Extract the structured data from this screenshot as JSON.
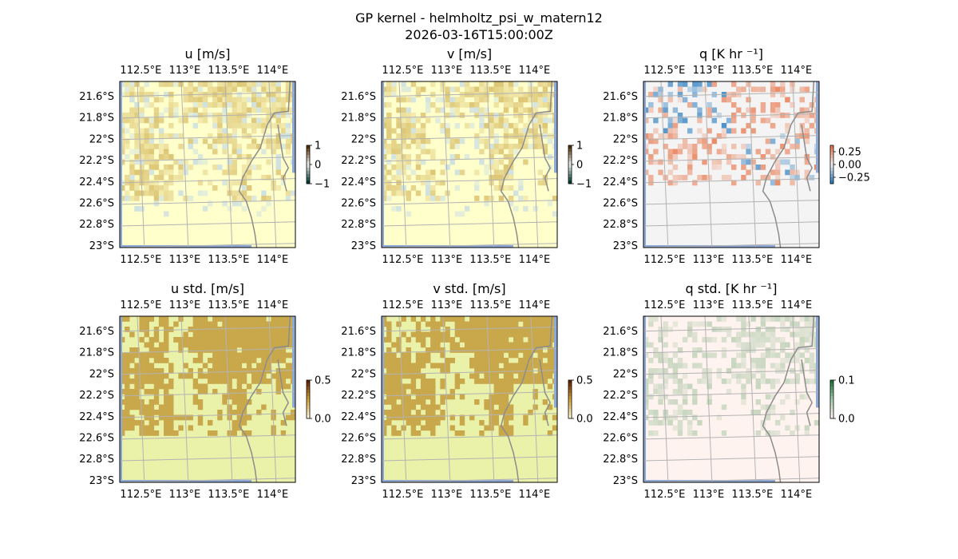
{
  "figure": {
    "title": "GP kernel - helmholtz_psi_w_matern12",
    "subtitle": "2026-03-16T15:00:00Z"
  },
  "colors": {
    "land_fill": "#ffffcc",
    "ocean_strip": "#8fa9d6",
    "coast_line": "#8c8c8c",
    "grid_line": "#b3b3b3",
    "u_high": "#d9c06b",
    "u_low": "#c9dde3",
    "q_pos": "#e8784d",
    "q_neg": "#2f7fc1",
    "q_bg": "#f4f4f4",
    "std_high": "#c9a84c",
    "std_low": "#e9f2a8",
    "qstd_bg": "#fff3ef",
    "qstd_patch": "#c7d6bf"
  },
  "chart_data": [
    {
      "type": "heatmap",
      "title": "u [m/s]",
      "colorbar": {
        "ticks": [
          "1",
          "0",
          "−1"
        ],
        "range": [
          -1,
          1
        ],
        "colormap": "BrBG_r"
      },
      "field": "u",
      "x_ticks": [
        "112.5°E",
        "113°E",
        "113.5°E",
        "114°E"
      ],
      "y_ticks": [
        "21.6°S",
        "21.8°S",
        "22°S",
        "22.2°S",
        "22.4°S",
        "22.6°S",
        "22.8°S",
        "23°S"
      ]
    },
    {
      "type": "heatmap",
      "title": "v [m/s]",
      "colorbar": {
        "ticks": [
          "1",
          "0",
          "−1"
        ],
        "range": [
          -1,
          1
        ],
        "colormap": "BrBG_r"
      },
      "field": "v",
      "x_ticks": [
        "112.5°E",
        "113°E",
        "113.5°E",
        "114°E"
      ],
      "y_ticks": [
        "21.6°S",
        "21.8°S",
        "22°S",
        "22.2°S",
        "22.4°S",
        "22.6°S",
        "22.8°S",
        "23°S"
      ]
    },
    {
      "type": "heatmap",
      "title": "q [K hr ⁻¹]",
      "colorbar": {
        "ticks": [
          "0.25",
          "0.00",
          "−0.25"
        ],
        "range": [
          -0.3,
          0.3
        ],
        "colormap": "RdBu_r"
      },
      "field": "q",
      "x_ticks": [
        "112.5°E",
        "113°E",
        "113.5°E",
        "114°E"
      ],
      "y_ticks": [
        "21.6°S",
        "21.8°S",
        "22°S",
        "22.2°S",
        "22.4°S",
        "22.6°S",
        "22.8°S",
        "23°S"
      ]
    },
    {
      "type": "heatmap",
      "title": "u std. [m/s]",
      "colorbar": {
        "ticks": [
          "0.5",
          "0.0"
        ],
        "range": [
          0,
          0.5
        ],
        "colormap": "YlOrBr"
      },
      "field": "ustd",
      "x_ticks": [
        "112.5°E",
        "113°E",
        "113.5°E",
        "114°E"
      ],
      "y_ticks": [
        "21.6°S",
        "21.8°S",
        "22°S",
        "22.2°S",
        "22.4°S",
        "22.6°S",
        "22.8°S",
        "23°S"
      ]
    },
    {
      "type": "heatmap",
      "title": "v std. [m/s]",
      "colorbar": {
        "ticks": [
          "0.5",
          "0.0"
        ],
        "range": [
          0,
          0.5
        ],
        "colormap": "YlOrBr"
      },
      "field": "vstd",
      "x_ticks": [
        "112.5°E",
        "113°E",
        "113.5°E",
        "114°E"
      ],
      "y_ticks": [
        "21.6°S",
        "21.8°S",
        "22°S",
        "22.2°S",
        "22.4°S",
        "22.6°S",
        "22.8°S",
        "23°S"
      ]
    },
    {
      "type": "heatmap",
      "title": "q std. [K hr ⁻¹]",
      "colorbar": {
        "ticks": [
          "0.1",
          "0.0"
        ],
        "range": [
          0,
          0.1
        ],
        "colormap": "Reds/Greens"
      },
      "field": "qstd",
      "x_ticks": [
        "112.5°E",
        "113°E",
        "113.5°E",
        "114°E"
      ],
      "y_ticks": [
        "21.6°S",
        "21.8°S",
        "22°S",
        "22.2°S",
        "22.4°S",
        "22.6°S",
        "22.8°S",
        "23°S"
      ]
    }
  ]
}
